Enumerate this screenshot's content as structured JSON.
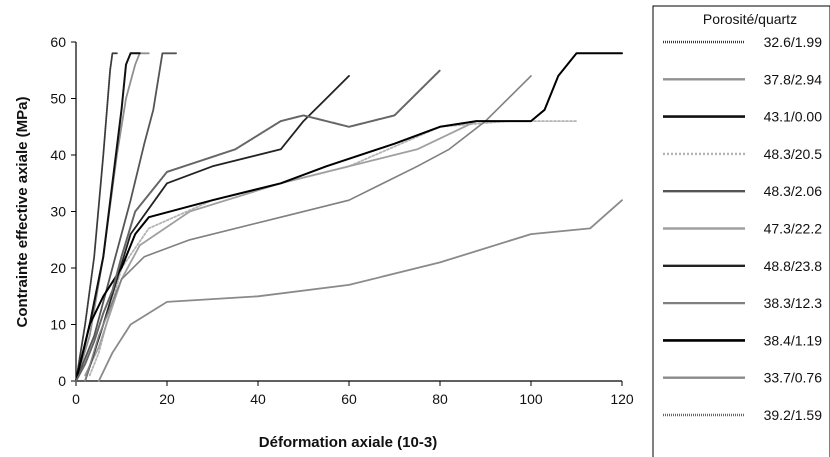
{
  "chart_data": {
    "type": "line",
    "xlabel": "Déformation axiale (10-3)",
    "ylabel": "Contrainte effective axiale (MPa)",
    "xlim": [
      0,
      120
    ],
    "ylim": [
      0,
      60
    ],
    "xticks": [
      0,
      20,
      40,
      60,
      80,
      100,
      120
    ],
    "yticks": [
      0,
      10,
      20,
      30,
      40,
      50,
      60
    ],
    "grid": false,
    "legend_title": "Porosité/quartz",
    "legend_position": "right",
    "series": [
      {
        "name": "32.6/1.99",
        "color": "#3a3a3a",
        "width": 1.8,
        "dash": "1,1",
        "points": [
          [
            0,
            0
          ],
          [
            2,
            10
          ],
          [
            4,
            22
          ],
          [
            6,
            40
          ],
          [
            7.5,
            55
          ],
          [
            8,
            58
          ],
          [
            9,
            58
          ]
        ]
      },
      {
        "name": "37.8/2.94",
        "color": "#909090",
        "width": 1.8,
        "dash": "",
        "points": [
          [
            0,
            0
          ],
          [
            3,
            8
          ],
          [
            6,
            22
          ],
          [
            9,
            40
          ],
          [
            11,
            50
          ],
          [
            13,
            56
          ],
          [
            14,
            58
          ],
          [
            16,
            58
          ]
        ]
      },
      {
        "name": "43.1/0.00",
        "color": "#111111",
        "width": 2.0,
        "dash": "",
        "points": [
          [
            0,
            0
          ],
          [
            3,
            10
          ],
          [
            6,
            22
          ],
          [
            8,
            35
          ],
          [
            10,
            48
          ],
          [
            11,
            56
          ],
          [
            12,
            58
          ],
          [
            14,
            58
          ]
        ]
      },
      {
        "name": "48.3/20.5",
        "color": "#b4b4b4",
        "width": 1.8,
        "dash": "2,2",
        "points": [
          [
            3,
            1
          ],
          [
            5,
            5
          ],
          [
            10,
            20
          ],
          [
            16,
            27
          ],
          [
            30,
            32
          ],
          [
            45,
            35
          ],
          [
            60,
            38
          ],
          [
            80,
            45
          ],
          [
            95,
            46
          ],
          [
            110,
            46
          ]
        ]
      },
      {
        "name": "48.3/2.06",
        "color": "#555555",
        "width": 1.8,
        "dash": "",
        "points": [
          [
            0,
            0
          ],
          [
            4,
            8
          ],
          [
            8,
            20
          ],
          [
            12,
            32
          ],
          [
            15,
            42
          ],
          [
            17,
            48
          ],
          [
            19,
            58
          ],
          [
            22,
            58
          ]
        ]
      },
      {
        "name": "47.3/22.2",
        "color": "#a0a0a0",
        "width": 1.8,
        "dash": "",
        "points": [
          [
            2,
            1
          ],
          [
            5,
            6
          ],
          [
            10,
            18
          ],
          [
            14,
            24
          ],
          [
            25,
            30
          ],
          [
            45,
            35
          ],
          [
            60,
            38
          ],
          [
            75,
            41
          ],
          [
            88,
            46
          ]
        ]
      },
      {
        "name": "48.8/23.8",
        "color": "#222222",
        "width": 1.8,
        "dash": "",
        "points": [
          [
            2,
            0
          ],
          [
            6,
            10
          ],
          [
            12,
            26
          ],
          [
            20,
            35
          ],
          [
            30,
            38
          ],
          [
            45,
            41
          ],
          [
            50,
            46
          ],
          [
            55,
            50
          ],
          [
            60,
            54
          ]
        ]
      },
      {
        "name": "38.3/12.3",
        "color": "#808080",
        "width": 1.6,
        "dash": "",
        "points": [
          [
            2,
            0
          ],
          [
            5,
            8
          ],
          [
            10,
            18
          ],
          [
            15,
            22
          ],
          [
            25,
            25
          ],
          [
            45,
            29
          ],
          [
            60,
            32
          ],
          [
            75,
            38
          ],
          [
            82,
            41
          ],
          [
            90,
            46
          ],
          [
            100,
            54
          ]
        ]
      },
      {
        "name": "38.4/1.19",
        "color": "#000000",
        "width": 2.0,
        "dash": "",
        "points": [
          [
            0,
            0
          ],
          [
            3,
            10
          ],
          [
            6,
            15
          ],
          [
            10,
            20
          ],
          [
            13,
            26
          ],
          [
            16,
            29
          ],
          [
            30,
            32
          ],
          [
            45,
            35
          ],
          [
            55,
            38
          ],
          [
            70,
            42
          ],
          [
            80,
            45
          ],
          [
            88,
            46
          ],
          [
            100,
            46
          ],
          [
            103,
            48
          ],
          [
            106,
            54
          ],
          [
            110,
            58
          ],
          [
            120,
            58
          ]
        ]
      },
      {
        "name": "33.7/0.76",
        "color": "#8a8a8a",
        "width": 1.8,
        "dash": "",
        "points": [
          [
            5,
            0
          ],
          [
            8,
            5
          ],
          [
            12,
            10
          ],
          [
            20,
            14
          ],
          [
            40,
            15
          ],
          [
            60,
            17
          ],
          [
            80,
            21
          ],
          [
            100,
            26
          ],
          [
            113,
            27
          ],
          [
            120,
            32
          ]
        ]
      },
      {
        "name": "39.2/1.59",
        "color": "#666666",
        "width": 2.0,
        "dash": "1,1",
        "points": [
          [
            0,
            0
          ],
          [
            2,
            3
          ],
          [
            4,
            7
          ],
          [
            6,
            12
          ],
          [
            8,
            16
          ],
          [
            10,
            22
          ],
          [
            13,
            30
          ],
          [
            20,
            37
          ],
          [
            35,
            41
          ],
          [
            45,
            46
          ],
          [
            50,
            47
          ],
          [
            60,
            45
          ],
          [
            70,
            47
          ],
          [
            80,
            55
          ]
        ]
      }
    ]
  }
}
